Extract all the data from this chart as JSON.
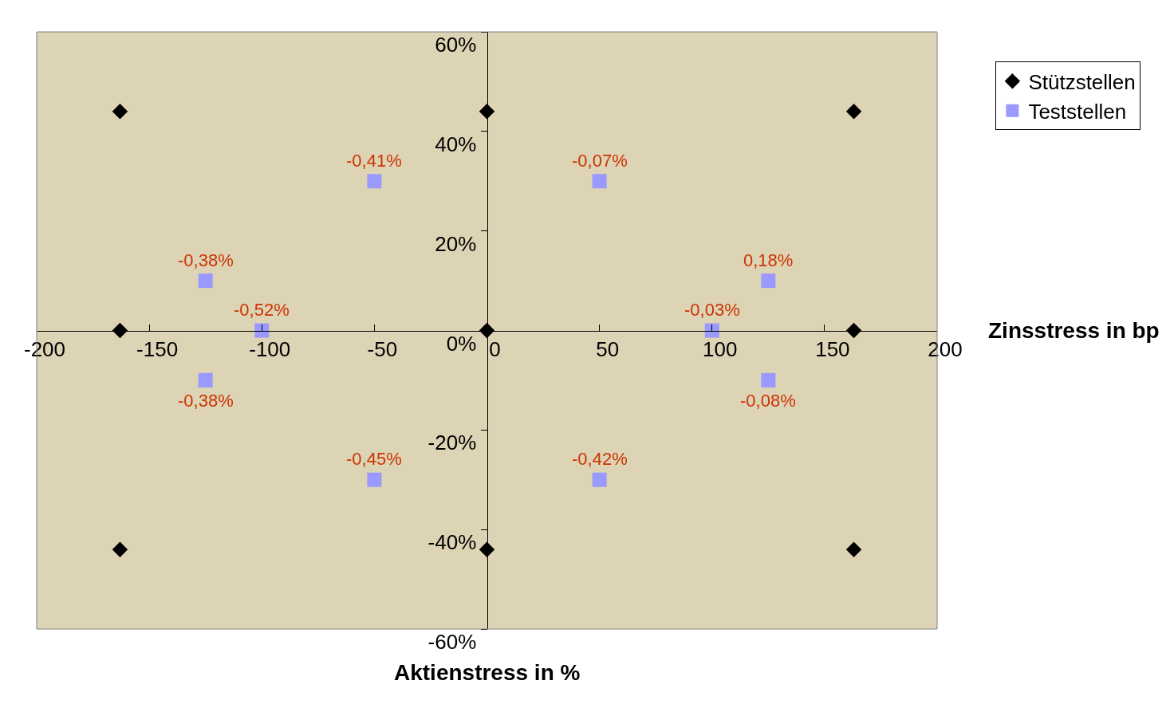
{
  "chart_data": {
    "type": "scatter",
    "xlabel": "Aktienstress in %",
    "ylabel": "Zinsstress in bp",
    "annotations": [
      {
        "text": "-0,38%",
        "x": -125,
        "y": 10
      },
      {
        "text": "-0,52%",
        "x": -100,
        "y": 0
      },
      {
        "text": "-0,38%",
        "x": -125,
        "y": -10
      },
      {
        "text": "-0,41%",
        "x": -50,
        "y": 30
      },
      {
        "text": "-0,45%",
        "x": -50,
        "y": -30
      },
      {
        "text": "-0,07%",
        "x": 50,
        "y": 30
      },
      {
        "text": "-0,42%",
        "x": 50,
        "y": -30
      },
      {
        "text": "-0,03%",
        "x": 100,
        "y": 0
      },
      {
        "text": "0,18%",
        "x": 125,
        "y": 10
      },
      {
        "text": "-0,08%",
        "x": 125,
        "y": -10
      }
    ],
    "xlim": [
      -200,
      200
    ],
    "xticks": [
      -200,
      -150,
      -100,
      -50,
      0,
      50,
      100,
      150,
      200
    ],
    "ylim": [
      -60,
      60
    ],
    "yticks": [
      {
        "value": -60,
        "label": "-60%"
      },
      {
        "value": -40,
        "label": "-40%"
      },
      {
        "value": -20,
        "label": "-20%"
      },
      {
        "value": 0,
        "label": "0%"
      },
      {
        "value": 20,
        "label": "20%"
      },
      {
        "value": 40,
        "label": "40%"
      },
      {
        "value": 60,
        "label": "60%"
      }
    ],
    "grid": false,
    "legend": "top right",
    "series": [
      {
        "name": "Stützstellen",
        "color": "#000000",
        "marker": "diamond",
        "x": [
          -163,
          -163,
          -163,
          0,
          0,
          0,
          163,
          163,
          163
        ],
        "values": [
          44,
          0,
          -44,
          44,
          0,
          -44,
          44,
          0,
          -44
        ]
      },
      {
        "name": "Teststellen",
        "color": "#9999ff",
        "marker": "square",
        "x": [
          -125,
          -100,
          -125,
          -50,
          -50,
          50,
          50,
          100,
          125,
          125
        ],
        "values": [
          10,
          0,
          -10,
          30,
          -30,
          30,
          -30,
          0,
          10,
          -10
        ]
      }
    ]
  }
}
